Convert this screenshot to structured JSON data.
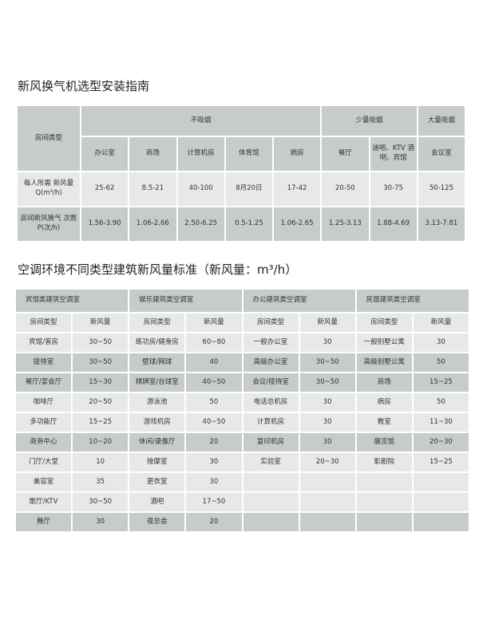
{
  "guide": {
    "title": "新风换气机选型安装指南",
    "room_type_label": "房间类型",
    "groups": [
      {
        "label": "不吸烟",
        "span": 5
      },
      {
        "label": "少量吸烟",
        "span": 2
      },
      {
        "label": "大量吸烟",
        "span": 1
      }
    ],
    "rooms": [
      "办公室",
      "商场",
      "计算机房",
      "体育馆",
      "病房",
      "餐厅",
      "迪吧、KTV 酒吧、宾馆",
      "会议室"
    ],
    "rows": [
      {
        "label": "每人所需 新风量Q(m³/h)",
        "values": [
          "25-62",
          "8.5-21",
          "40-100",
          "8月20日",
          "17-42",
          "20-50",
          "30-75",
          "50-125"
        ]
      },
      {
        "label": "房间新风换气 次数P(次/h)",
        "values": [
          "1.56-3.90",
          "1.06-2.66",
          "2.50-6.25",
          "0.5-1.25",
          "1.06-2.65",
          "1.25-3.13",
          "1.88-4.69",
          "3.13-7.81"
        ]
      }
    ]
  },
  "standard": {
    "title": "空调环境不同类型建筑新风量标准（新风量：m³/h）",
    "categories": [
      "宾馆类建筑空调室",
      "娱乐建筑类空调室",
      "办公建筑类空调室",
      "民居建筑类空调室"
    ],
    "col_room": "房间类型",
    "col_flow": "新风量",
    "rows": [
      [
        [
          "宾馆/客房",
          "30~50"
        ],
        [
          "练功房/健身房",
          "60~80"
        ],
        [
          "一般办公室",
          "30"
        ],
        [
          "一般别墅公寓",
          "30"
        ]
      ],
      [
        [
          "接待室",
          "30~50"
        ],
        [
          "壁球/网球",
          "40"
        ],
        [
          "高级办公室",
          "30~50"
        ],
        [
          "高级别墅公寓",
          "50"
        ]
      ],
      [
        [
          "餐厅/宴会厅",
          "15~30"
        ],
        [
          "棋牌室/台球室",
          "40~50"
        ],
        [
          "会议/接待室",
          "30~50"
        ],
        [
          "商场",
          "15~25"
        ]
      ],
      [
        [
          "咖啡厅",
          "20~50"
        ],
        [
          "游泳池",
          "50"
        ],
        [
          "电话总机房",
          "30"
        ],
        [
          "病房",
          "50"
        ]
      ],
      [
        [
          "多功能厅",
          "15~25"
        ],
        [
          "游戏机房",
          "40~50"
        ],
        [
          "计算机房",
          "30"
        ],
        [
          "教室",
          "11~30"
        ]
      ],
      [
        [
          "商务中心",
          "10~20"
        ],
        [
          "休闲/录像厅",
          "20"
        ],
        [
          "复印机房",
          "30"
        ],
        [
          "展览馆",
          "20~30"
        ]
      ],
      [
        [
          "门厅/大堂",
          "10"
        ],
        [
          "按摩室",
          "30"
        ],
        [
          "实验室",
          "20~30"
        ],
        [
          "影剧院",
          "15~25"
        ]
      ],
      [
        [
          "美容室",
          "35"
        ],
        [
          "更衣室",
          "30"
        ],
        [
          "",
          ""
        ],
        [
          "",
          ""
        ]
      ],
      [
        [
          "歌厅/KTV",
          "30~50"
        ],
        [
          "酒吧",
          "17~50"
        ],
        [
          "",
          ""
        ],
        [
          "",
          ""
        ]
      ],
      [
        [
          "舞厅",
          "30"
        ],
        [
          "夜总会",
          "20"
        ],
        [
          "",
          ""
        ],
        [
          "",
          ""
        ]
      ]
    ]
  }
}
